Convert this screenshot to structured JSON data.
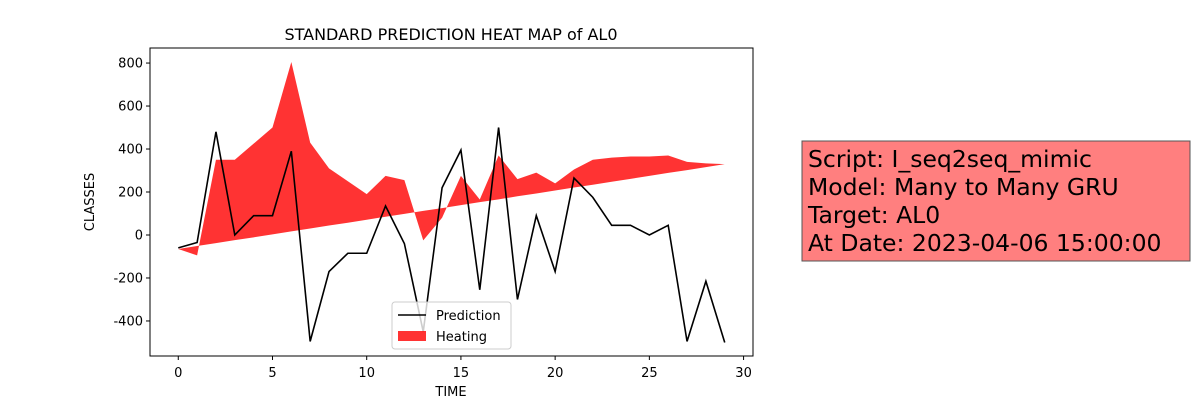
{
  "chart_data": {
    "type": "line_area",
    "title": "STANDARD PREDICTION HEAT MAP of AL0",
    "x_label": "TIME",
    "y_label": "CLASSES",
    "x": [
      0,
      1,
      2,
      3,
      4,
      5,
      6,
      7,
      8,
      9,
      10,
      11,
      12,
      13,
      14,
      15,
      16,
      17,
      18,
      19,
      20,
      21,
      22,
      23,
      24,
      25,
      26,
      27,
      28,
      29
    ],
    "series": [
      {
        "name": "Prediction",
        "color": "#000000",
        "kind": "line",
        "values": [
          -60,
          -35,
          480,
          0,
          90,
          90,
          390,
          -495,
          -170,
          -85,
          -85,
          135,
          -40,
          -450,
          220,
          395,
          -255,
          500,
          -300,
          90,
          -170,
          265,
          175,
          45,
          45,
          0,
          45,
          -495,
          -215,
          -500
        ]
      },
      {
        "name": "Heating",
        "color": "#ff0000",
        "kind": "area",
        "values": [
          -65,
          -95,
          350,
          350,
          425,
          500,
          805,
          430,
          310,
          250,
          190,
          275,
          255,
          -25,
          80,
          275,
          165,
          370,
          260,
          290,
          240,
          305,
          350,
          360,
          365,
          365,
          370,
          340,
          333,
          330
        ],
        "base": [
          -65,
          -51,
          -38,
          -24,
          -11,
          3,
          17,
          30,
          44,
          57,
          71,
          85,
          98,
          112,
          125,
          139,
          153,
          166,
          180,
          193,
          207,
          221,
          234,
          248,
          261,
          275,
          289,
          302,
          316,
          330
        ]
      }
    ],
    "xlim": [
      -1.5,
      30.5
    ],
    "ylim": [
      -563,
      870
    ],
    "xticks": [
      0,
      5,
      10,
      15,
      20,
      25,
      30
    ],
    "yticks": [
      -400,
      -200,
      0,
      200,
      400,
      600,
      800
    ],
    "legend": "lower center",
    "annotation_lines": [
      "Script: I_seq2seq_mimic",
      "Model: Many to Many GRU",
      "Target: AL0",
      "At Date: 2023-04-06 15:00:00"
    ]
  }
}
